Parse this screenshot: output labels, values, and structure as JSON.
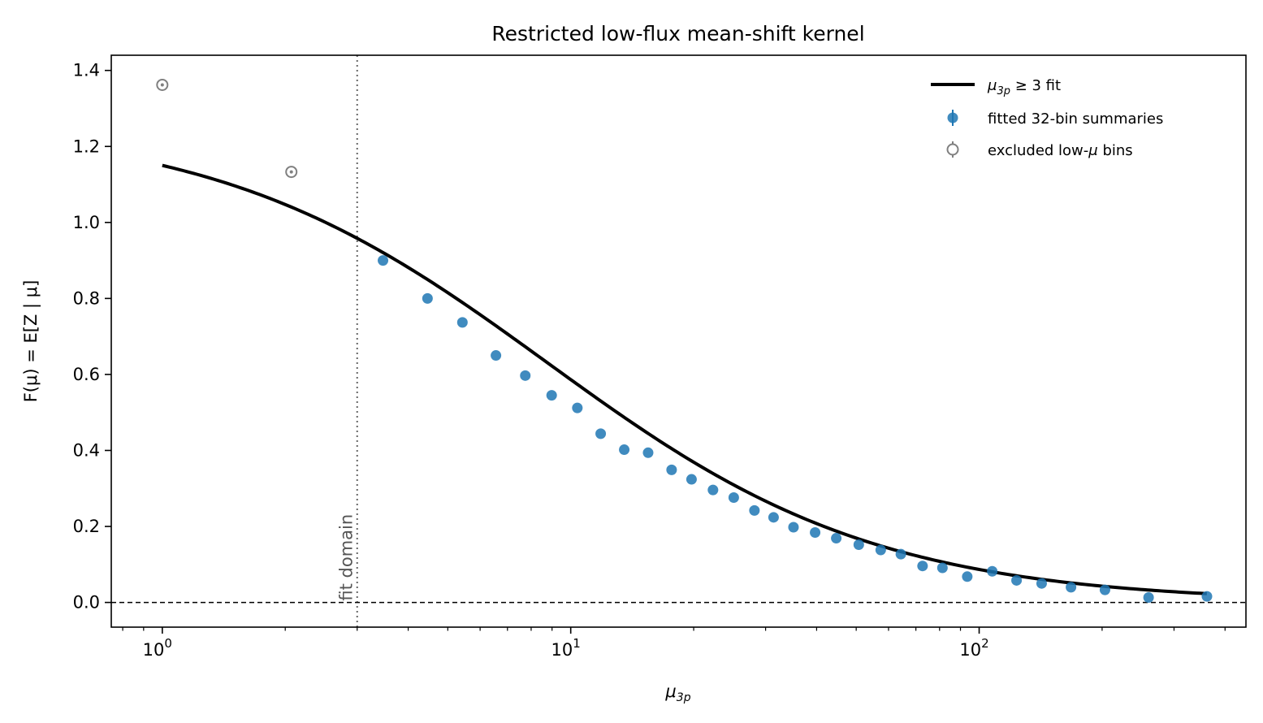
{
  "chart_data": {
    "type": "scatter",
    "title": "Restricted low-flux mean-shift kernel",
    "xlabel": "μ3p",
    "ylabel": "F(μ) = E[Z | μ]",
    "xscale": "log",
    "xlim": [
      0.75,
      450
    ],
    "ylim": [
      -0.065,
      1.44
    ],
    "x_ticks": [
      {
        "value": 1,
        "base": "10",
        "exp": "0"
      },
      {
        "value": 10,
        "base": "10",
        "exp": "1"
      },
      {
        "value": 100,
        "base": "10",
        "exp": "2"
      }
    ],
    "y_ticks": [
      "0.0",
      "0.2",
      "0.4",
      "0.6",
      "0.8",
      "1.0",
      "1.2",
      "1.4"
    ],
    "grid": false,
    "legend_position": "top-right",
    "colors": {
      "fit": "#000000",
      "fitted": "#1f77b4",
      "excluded": "#808080",
      "vline": "#666666"
    },
    "annotations": [
      {
        "text": "fit domain",
        "x": 3
      }
    ],
    "reference_lines": [
      {
        "type": "vertical",
        "x": 3,
        "style": "dotted"
      },
      {
        "type": "horizontal",
        "y": 0,
        "style": "dashed"
      }
    ],
    "series": [
      {
        "name": "μ3p ≥ 3 fit",
        "type": "line",
        "curve": {
          "a": 1.263,
          "c": 0.045,
          "p": 1.07
        }
      },
      {
        "name": "fitted 32-bin summaries",
        "type": "scatter",
        "points": [
          [
            3.47,
            0.9
          ],
          [
            4.46,
            0.8
          ],
          [
            5.43,
            0.737
          ],
          [
            6.56,
            0.65
          ],
          [
            7.74,
            0.597
          ],
          [
            8.98,
            0.545
          ],
          [
            10.38,
            0.512
          ],
          [
            11.84,
            0.444
          ],
          [
            13.52,
            0.402
          ],
          [
            15.47,
            0.394
          ],
          [
            17.66,
            0.349
          ],
          [
            19.76,
            0.324
          ],
          [
            22.3,
            0.296
          ],
          [
            25.07,
            0.276
          ],
          [
            28.17,
            0.242
          ],
          [
            31.38,
            0.224
          ],
          [
            35.11,
            0.198
          ],
          [
            39.66,
            0.184
          ],
          [
            44.68,
            0.169
          ],
          [
            50.73,
            0.152
          ],
          [
            57.41,
            0.138
          ],
          [
            64.32,
            0.127
          ],
          [
            72.68,
            0.096
          ],
          [
            81.3,
            0.091
          ],
          [
            93.51,
            0.068
          ],
          [
            107.65,
            0.082
          ],
          [
            123.47,
            0.058
          ],
          [
            142.24,
            0.05
          ],
          [
            167.83,
            0.04
          ],
          [
            203.26,
            0.033
          ],
          [
            259.91,
            0.013
          ],
          [
            361.18,
            0.016
          ]
        ]
      },
      {
        "name": "excluded low-μ bins",
        "type": "scatter",
        "points": [
          [
            1.0,
            1.362
          ],
          [
            2.07,
            1.133
          ]
        ]
      }
    ]
  }
}
